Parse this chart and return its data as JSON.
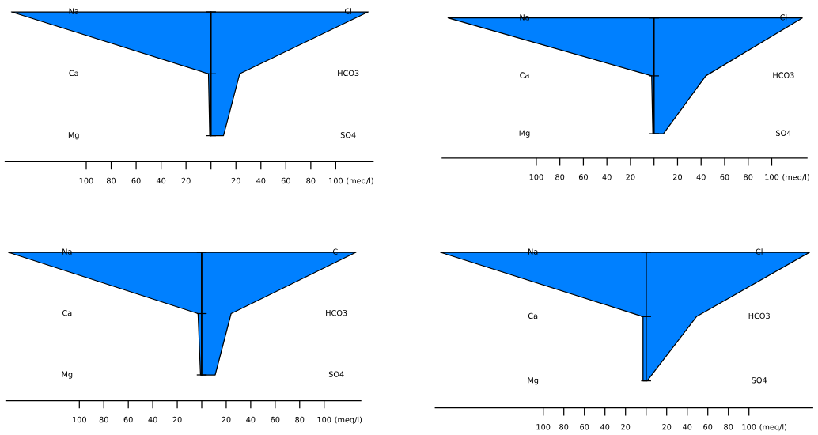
{
  "chart_data": [
    {
      "type": "area",
      "orientation": "horizontal",
      "categories": [
        "Na",
        "Ca",
        "Mg"
      ],
      "y2_categories": [
        "Cl",
        "HCO3",
        "SO4"
      ],
      "series": [
        {
          "color": "#0080ff",
          "values": [
            -160,
            -2,
            -1
          ]
        },
        {
          "color": "#0080ff",
          "values": [
            126,
            23,
            10
          ]
        }
      ],
      "xlim": [
        -165,
        130
      ],
      "xticks": [
        {
          "value": -100,
          "label": "100"
        },
        {
          "value": -80,
          "label": "80"
        },
        {
          "value": -60,
          "label": "60"
        },
        {
          "value": -40,
          "label": "40"
        },
        {
          "value": -20,
          "label": "20"
        },
        {
          "value": 0,
          "label": null
        },
        20,
        40,
        60,
        80,
        100
      ],
      "xlabel": "(meq/l)"
    },
    {
      "type": "area",
      "orientation": "horizontal",
      "categories": [
        "Na",
        "Ca",
        "Mg"
      ],
      "y2_categories": [
        "Cl",
        "HCO3",
        "SO4"
      ],
      "series": [
        {
          "color": "#0080ff",
          "values": [
            -175,
            -2,
            -1
          ]
        },
        {
          "color": "#0080ff",
          "values": [
            126,
            44,
            8
          ]
        }
      ],
      "xlim": [
        -180,
        130
      ],
      "xticks": [
        {
          "value": -100,
          "label": "100"
        },
        {
          "value": -80,
          "label": "80"
        },
        {
          "value": -60,
          "label": "60"
        },
        {
          "value": -40,
          "label": "40"
        },
        {
          "value": -20,
          "label": "20"
        },
        {
          "value": 0,
          "label": null
        },
        20,
        40,
        60,
        80,
        100
      ],
      "xlabel": "(meq/l)"
    },
    {
      "type": "area",
      "orientation": "horizontal",
      "categories": [
        "Na",
        "Ca",
        "Mg"
      ],
      "y2_categories": [
        "Cl",
        "HCO3",
        "SO4"
      ],
      "series": [
        {
          "color": "#0080ff",
          "values": [
            -158,
            -3,
            -1
          ]
        },
        {
          "color": "#0080ff",
          "values": [
            126,
            24,
            11
          ]
        }
      ],
      "xlim": [
        -160,
        130
      ],
      "xticks": [
        {
          "value": -100,
          "label": "100"
        },
        {
          "value": -80,
          "label": "80"
        },
        {
          "value": -60,
          "label": "60"
        },
        {
          "value": -40,
          "label": "40"
        },
        {
          "value": -20,
          "label": "20"
        },
        {
          "value": 0,
          "label": null
        },
        20,
        40,
        60,
        80,
        100
      ],
      "xlabel": "(meq/l)"
    },
    {
      "type": "area",
      "orientation": "horizontal",
      "categories": [
        "Na",
        "Ca",
        "Mg"
      ],
      "y2_categories": [
        "Cl",
        "HCO3",
        "SO4"
      ],
      "series": [
        {
          "color": "#0080ff",
          "values": [
            -200,
            -3,
            -3
          ]
        },
        {
          "color": "#0080ff",
          "values": [
            159,
            49,
            1
          ]
        }
      ],
      "xlim": [
        -205,
        162
      ],
      "xticks": [
        {
          "value": -100,
          "label": "100"
        },
        {
          "value": -80,
          "label": "80"
        },
        {
          "value": -60,
          "label": "60"
        },
        {
          "value": -40,
          "label": "40"
        },
        {
          "value": -20,
          "label": "20"
        },
        {
          "value": 0,
          "label": null
        },
        20,
        40,
        60,
        80,
        100
      ],
      "xlabel": "(meq/l)"
    }
  ]
}
